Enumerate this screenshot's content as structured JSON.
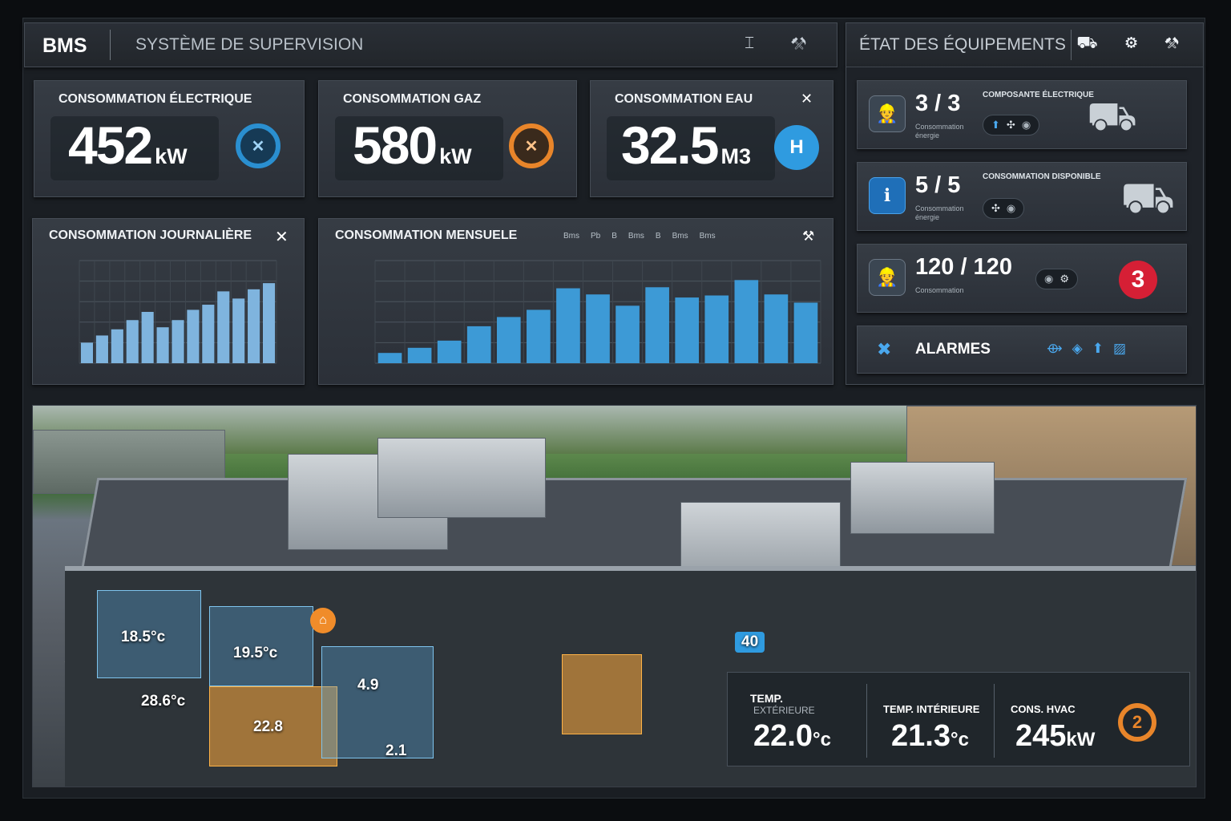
{
  "header": {
    "brand": "BMS",
    "title": "SYSTÈME DE SUPERVISION",
    "tools": "⌶ ⚒"
  },
  "equipment_header": {
    "title": "ÉTAT DES ÉQUIPEMENTS",
    "tools": "⛟ ⚙ ⚒"
  },
  "kpis": [
    {
      "label": "CONSOMMATION ÉLECTRIQUE",
      "value": "452",
      "unit": "kW",
      "color": "#2a8fd0"
    },
    {
      "label": "CONSOMMATION GAZ",
      "value": "580",
      "unit": "kW",
      "color": "#e8852a"
    },
    {
      "label": "CONSOMMATION EAU",
      "value": "32.5",
      "unit": "M3",
      "color": "#2f9be0"
    }
  ],
  "daily_chart": {
    "title": "CONSOMMATION JOURNALIÈRE",
    "close": "✕"
  },
  "monthly_chart": {
    "title": "CONSOMMATION MENSUELE",
    "filters": [
      "Bms",
      "Pb",
      "B",
      "Bms",
      "B",
      "Bms",
      "Bms"
    ],
    "tool": "⚒"
  },
  "chart_data": [
    {
      "type": "bar",
      "title": "CONSOMMATION JOURNALIÈRE",
      "values": [
        20,
        27,
        33,
        42,
        50,
        35,
        42,
        52,
        57,
        70,
        63,
        72,
        78
      ],
      "ylim": [
        0,
        100
      ],
      "color": "#7fb4de",
      "grid": true
    },
    {
      "type": "bar",
      "title": "CONSOMMATION MENSUELE",
      "values": [
        10,
        15,
        22,
        36,
        45,
        52,
        73,
        67,
        56,
        74,
        64,
        66,
        81,
        67,
        59
      ],
      "ylim": [
        0,
        100
      ],
      "color": "#3d9ad6",
      "grid": true
    }
  ],
  "equipment": [
    {
      "count": "3 / 3",
      "caption": "COMPOSANTE ÉLECTRIQUE",
      "sub": "Consommation énergie",
      "icon_color": "#3b4652"
    },
    {
      "count": "5 / 5",
      "caption": "CONSOMMATION DISPONIBLE",
      "sub": "Consommation énergie",
      "icon_color": "#1f6fb8"
    },
    {
      "count": "120 / 120",
      "caption": "",
      "sub": "Consommation",
      "badge": "3",
      "icon_color": "#3b4652"
    }
  ],
  "alarms": {
    "label": "ALARMES"
  },
  "scene": {
    "tags": [
      "18.5°c",
      "19.5°c",
      "28.6°c",
      "22.8",
      "2.1",
      "4.9",
      "40"
    ]
  },
  "readings": [
    {
      "label": "TEMP.",
      "sub": "EXTÉRIEURE",
      "value": "22.0",
      "unit": "°c"
    },
    {
      "label": "TEMP. INTÉRIEURE",
      "sub": "",
      "value": "21.3",
      "unit": "°c"
    },
    {
      "label": "CONS. HVAC",
      "sub": "",
      "value": "245",
      "unit": "kW",
      "badge": "2"
    }
  ]
}
